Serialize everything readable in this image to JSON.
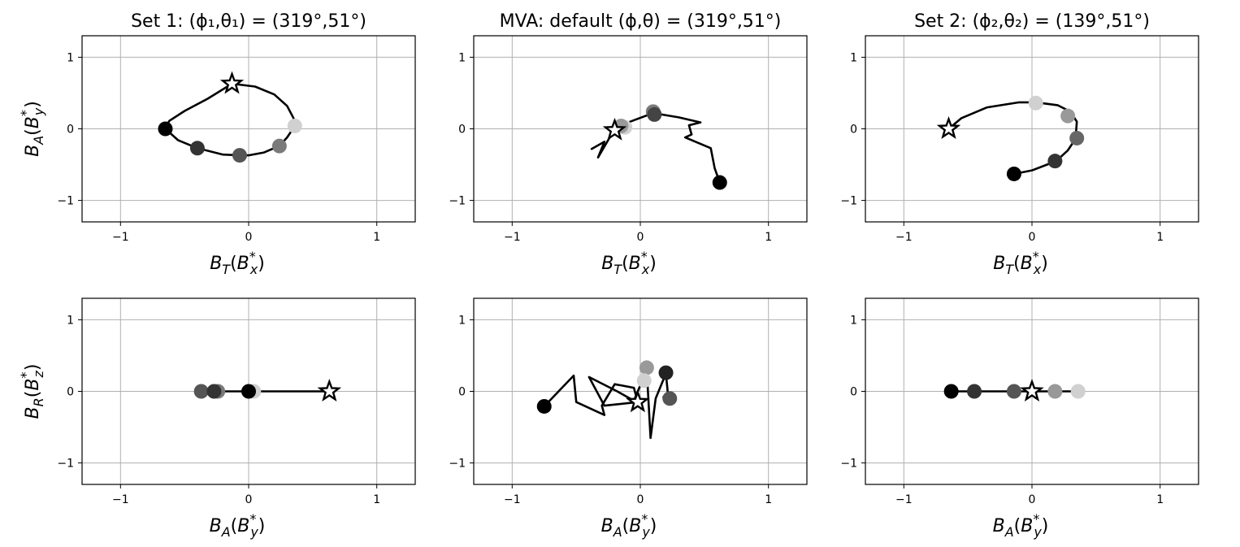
{
  "chart_data": [
    {
      "type": "line",
      "title": "Set 1: (ϕ₁,θ₁) = (319°,51°)",
      "xlabel": "B_T(B_x*)",
      "ylabel": "B_A(B_y*)",
      "xlim": [
        -1.3,
        1.3
      ],
      "ylim": [
        -1.3,
        1.3
      ],
      "xticks": [
        -1,
        0,
        1
      ],
      "yticks": [
        -1,
        0,
        1
      ],
      "tick_labels": [
        "−1",
        "0",
        "1"
      ],
      "grid": true,
      "trajectory": [
        [
          0.36,
          0.04
        ],
        [
          0.3,
          -0.12
        ],
        [
          0.24,
          -0.24
        ],
        [
          0.12,
          -0.33
        ],
        [
          0.0,
          -0.37
        ],
        [
          -0.07,
          -0.37
        ],
        [
          -0.2,
          -0.36
        ],
        [
          -0.4,
          -0.27
        ],
        [
          -0.55,
          -0.16
        ],
        [
          -0.65,
          0.0
        ],
        [
          -0.62,
          0.11
        ],
        [
          -0.5,
          0.25
        ],
        [
          -0.32,
          0.42
        ],
        [
          -0.13,
          0.63
        ],
        [
          0.05,
          0.59
        ],
        [
          0.2,
          0.48
        ],
        [
          0.3,
          0.32
        ],
        [
          0.35,
          0.15
        ],
        [
          0.36,
          0.04
        ]
      ],
      "start_marker": {
        "x": -0.13,
        "y": 0.63,
        "shape": "star"
      },
      "points": [
        {
          "x": 0.36,
          "y": 0.04,
          "gray": "#d0d0d0"
        },
        {
          "x": 0.24,
          "y": -0.24,
          "gray": "#7a7a7a"
        },
        {
          "x": -0.07,
          "y": -0.37,
          "gray": "#555555"
        },
        {
          "x": -0.4,
          "y": -0.27,
          "gray": "#333333"
        },
        {
          "x": -0.65,
          "y": 0.0,
          "gray": "#000000"
        }
      ]
    },
    {
      "type": "line",
      "title": "MVA:  default (ϕ,θ) = (319°,51°)",
      "xlabel": "B_T(B_x*)",
      "ylabel": "",
      "xlim": [
        -1.3,
        1.3
      ],
      "ylim": [
        -1.3,
        1.3
      ],
      "xticks": [
        -1,
        0,
        1
      ],
      "yticks": [
        -1,
        0,
        1
      ],
      "tick_labels": [
        "−1",
        "0",
        "1"
      ],
      "grid": true,
      "trajectory": [
        [
          -0.38,
          -0.28
        ],
        [
          -0.28,
          -0.18
        ],
        [
          -0.33,
          -0.4
        ],
        [
          -0.2,
          0.0
        ],
        [
          -0.15,
          0.05
        ],
        [
          -0.05,
          0.12
        ],
        [
          0.1,
          0.22
        ],
        [
          0.3,
          0.16
        ],
        [
          0.47,
          0.09
        ],
        [
          0.38,
          0.05
        ],
        [
          0.4,
          -0.08
        ],
        [
          0.35,
          -0.12
        ],
        [
          0.55,
          -0.27
        ],
        [
          0.58,
          -0.55
        ],
        [
          0.62,
          -0.75
        ]
      ],
      "start_marker": {
        "x": -0.2,
        "y": -0.02,
        "shape": "star"
      },
      "points": [
        {
          "x": -0.12,
          "y": 0.02,
          "gray": "#d0d0d0"
        },
        {
          "x": -0.15,
          "y": 0.04,
          "gray": "#999999"
        },
        {
          "x": 0.1,
          "y": 0.24,
          "gray": "#7a7a7a"
        },
        {
          "x": 0.11,
          "y": 0.2,
          "gray": "#444444"
        },
        {
          "x": 0.62,
          "y": -0.75,
          "gray": "#000000"
        }
      ]
    },
    {
      "type": "line",
      "title": "Set 2: (ϕ₂,θ₂) = (139°,51°)",
      "xlabel": "B_T(B_x*)",
      "ylabel": "",
      "xlim": [
        -1.3,
        1.3
      ],
      "ylim": [
        -1.3,
        1.3
      ],
      "xticks": [
        -1,
        0,
        1
      ],
      "yticks": [
        -1,
        0,
        1
      ],
      "tick_labels": [
        "−1",
        "0",
        "1"
      ],
      "grid": true,
      "trajectory": [
        [
          -0.65,
          0.0
        ],
        [
          -0.55,
          0.15
        ],
        [
          -0.35,
          0.3
        ],
        [
          -0.1,
          0.37
        ],
        [
          0.03,
          0.37
        ],
        [
          0.2,
          0.33
        ],
        [
          0.3,
          0.24
        ],
        [
          0.35,
          0.1
        ],
        [
          0.34,
          -0.14
        ],
        [
          0.28,
          -0.3
        ],
        [
          0.19,
          -0.45
        ],
        [
          0.0,
          -0.58
        ],
        [
          -0.14,
          -0.63
        ]
      ],
      "start_marker": {
        "x": -0.65,
        "y": 0.0,
        "shape": "star"
      },
      "points": [
        {
          "x": 0.03,
          "y": 0.36,
          "gray": "#d0d0d0"
        },
        {
          "x": 0.28,
          "y": 0.18,
          "gray": "#999999"
        },
        {
          "x": 0.35,
          "y": -0.13,
          "gray": "#666666"
        },
        {
          "x": 0.18,
          "y": -0.45,
          "gray": "#333333"
        },
        {
          "x": -0.14,
          "y": -0.63,
          "gray": "#000000"
        }
      ]
    },
    {
      "type": "line",
      "title": "",
      "xlabel": "B_A(B_y*)",
      "ylabel": "B_R(B_z*)",
      "xlim": [
        -1.3,
        1.3
      ],
      "ylim": [
        -1.3,
        1.3
      ],
      "xticks": [
        -1,
        0,
        1
      ],
      "yticks": [
        -1,
        0,
        1
      ],
      "tick_labels": [
        "−1",
        "0",
        "1"
      ],
      "grid": true,
      "trajectory": [
        [
          -0.37,
          0.0
        ],
        [
          0.63,
          0.0
        ]
      ],
      "start_marker": {
        "x": 0.63,
        "y": 0.0,
        "shape": "star"
      },
      "points": [
        {
          "x": 0.04,
          "y": 0.0,
          "gray": "#d0d0d0"
        },
        {
          "x": -0.24,
          "y": 0.0,
          "gray": "#7a7a7a"
        },
        {
          "x": -0.37,
          "y": 0.0,
          "gray": "#555555"
        },
        {
          "x": -0.27,
          "y": 0.0,
          "gray": "#333333"
        },
        {
          "x": 0.0,
          "y": 0.0,
          "gray": "#000000"
        }
      ]
    },
    {
      "type": "line",
      "title": "",
      "xlabel": "B_A(B_y*)",
      "ylabel": "",
      "xlim": [
        -1.3,
        1.3
      ],
      "ylim": [
        -1.3,
        1.3
      ],
      "xticks": [
        -1,
        0,
        1
      ],
      "yticks": [
        -1,
        0,
        1
      ],
      "tick_labels": [
        "−1",
        "0",
        "1"
      ],
      "grid": true,
      "trajectory": [
        [
          -0.75,
          -0.21
        ],
        [
          -0.52,
          0.22
        ],
        [
          -0.5,
          -0.15
        ],
        [
          -0.28,
          -0.33
        ],
        [
          -0.3,
          -0.2
        ],
        [
          -0.2,
          0.1
        ],
        [
          -0.05,
          0.05
        ],
        [
          -0.02,
          -0.15
        ],
        [
          -0.28,
          -0.2
        ],
        [
          -0.4,
          0.2
        ],
        [
          -0.18,
          0.0
        ],
        [
          -0.05,
          -0.13
        ],
        [
          0.05,
          0.3
        ],
        [
          0.08,
          -0.65
        ],
        [
          0.12,
          -0.1
        ],
        [
          0.2,
          0.25
        ],
        [
          0.22,
          -0.12
        ],
        [
          0.18,
          -0.08
        ]
      ],
      "start_marker": {
        "x": -0.02,
        "y": -0.15,
        "shape": "star"
      },
      "points": [
        {
          "x": 0.05,
          "y": 0.33,
          "gray": "#999999"
        },
        {
          "x": 0.03,
          "y": 0.15,
          "gray": "#d0d0d0"
        },
        {
          "x": 0.23,
          "y": -0.1,
          "gray": "#555555"
        },
        {
          "x": 0.2,
          "y": 0.26,
          "gray": "#222222"
        },
        {
          "x": -0.75,
          "y": -0.21,
          "gray": "#000000"
        }
      ]
    },
    {
      "type": "line",
      "title": "",
      "xlabel": "B_A(B_y*)",
      "ylabel": "",
      "xlim": [
        -1.3,
        1.3
      ],
      "ylim": [
        -1.3,
        1.3
      ],
      "xticks": [
        -1,
        0,
        1
      ],
      "yticks": [
        -1,
        0,
        1
      ],
      "tick_labels": [
        "−1",
        "0",
        "1"
      ],
      "grid": true,
      "trajectory": [
        [
          -0.63,
          0.0
        ],
        [
          0.37,
          0.0
        ]
      ],
      "start_marker": {
        "x": 0.0,
        "y": 0.0,
        "shape": "star"
      },
      "points": [
        {
          "x": 0.36,
          "y": 0.0,
          "gray": "#d0d0d0"
        },
        {
          "x": 0.18,
          "y": 0.0,
          "gray": "#999999"
        },
        {
          "x": -0.14,
          "y": 0.0,
          "gray": "#555555"
        },
        {
          "x": -0.45,
          "y": 0.0,
          "gray": "#333333"
        },
        {
          "x": -0.63,
          "y": 0.0,
          "gray": "#000000"
        }
      ]
    }
  ]
}
